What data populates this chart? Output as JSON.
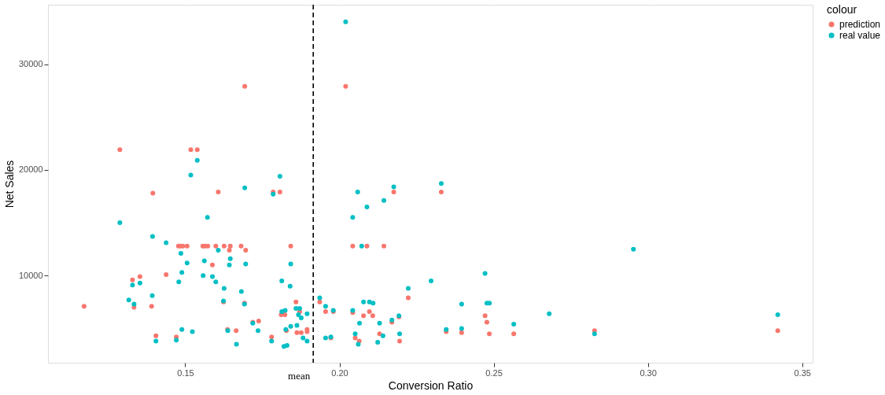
{
  "chart_data": {
    "type": "scatter",
    "xlabel": "Conversion Ratio",
    "ylabel": "Net Sales",
    "legend_title": "colour",
    "xlim": [
      0.1055,
      0.3534
    ],
    "ylim": [
      1760,
      35620
    ],
    "xticks": [
      0.15,
      {
        "value": 0.2,
        "label": "0.20"
      },
      0.25,
      {
        "value": 0.3,
        "label": "0.30"
      },
      0.35
    ],
    "yticks": [
      10000,
      20000,
      30000
    ],
    "grid": true,
    "legend": "right",
    "marker": "circle",
    "ref_lines": [
      {
        "axis": "x",
        "value": 0.1915,
        "label": "mean",
        "color": "#000000",
        "line_style": "dashed"
      }
    ],
    "series": [
      {
        "name": "prediction",
        "color": "#f8766d",
        "x": [
          0.1288,
          0.1518,
          0.1539,
          0.1395,
          0.1607,
          0.1785,
          0.1807,
          0.1478,
          0.1485,
          0.1492,
          0.1506,
          0.1557,
          0.1564,
          0.1573,
          0.1599,
          0.1626,
          0.1646,
          0.1681,
          0.1842,
          0.1643,
          0.1696,
          0.1588,
          0.1329,
          0.1353,
          0.1438,
          0.1172,
          0.1334,
          0.1391,
          0.1624,
          0.1692,
          0.1859,
          0.1871,
          0.1811,
          0.1823,
          0.1738,
          0.1719,
          0.1637,
          0.1665,
          0.1405,
          0.1471,
          0.178,
          0.1828,
          0.1862,
          0.1876,
          0.1895,
          0.1895,
          0.1936,
          0.1955,
          0.198,
          0.1972,
          0.2043,
          0.2089,
          0.2144,
          0.2176,
          0.233,
          0.2043,
          0.2078,
          0.2097,
          0.2108,
          0.2051,
          0.2064,
          0.213,
          0.217,
          0.2193,
          0.2195,
          0.2223,
          0.2346,
          0.2396,
          0.2472,
          0.2478,
          0.2486,
          0.2565,
          0.2827,
          0.3421,
          0.202,
          0.1693
        ],
        "values": [
          21900,
          21900,
          21900,
          17800,
          17900,
          17900,
          17900,
          12800,
          12800,
          12800,
          12800,
          12800,
          12800,
          12800,
          12800,
          12800,
          12800,
          12800,
          12800,
          12400,
          12400,
          11000,
          9600,
          9900,
          10100,
          7100,
          7000,
          7100,
          7500,
          7400,
          7500,
          6600,
          6300,
          6300,
          5700,
          5600,
          4900,
          4800,
          4300,
          4200,
          4200,
          4800,
          4600,
          4600,
          4900,
          4700,
          7500,
          6600,
          6600,
          4100,
          12800,
          12800,
          12800,
          17900,
          17900,
          6500,
          6200,
          6600,
          6200,
          4100,
          3800,
          4500,
          5600,
          6100,
          3800,
          7900,
          4700,
          4600,
          6200,
          5600,
          4500,
          4500,
          4800,
          4800,
          27900,
          27900
        ]
      },
      {
        "name": "real value",
        "color": "#00bfc4",
        "x": [
          0.1539,
          0.1518,
          0.1807,
          0.1693,
          0.1785,
          0.1572,
          0.1288,
          0.1394,
          0.1438,
          0.1486,
          0.1607,
          0.1646,
          0.1506,
          0.1562,
          0.1643,
          0.1696,
          0.1842,
          0.1489,
          0.1558,
          0.1588,
          0.1599,
          0.1479,
          0.1813,
          0.184,
          0.1329,
          0.1353,
          0.1626,
          0.1393,
          0.1682,
          0.1317,
          0.1334,
          0.1624,
          0.1692,
          0.1813,
          0.1824,
          0.1859,
          0.1871,
          0.1867,
          0.1876,
          0.1895,
          0.1719,
          0.1862,
          0.1842,
          0.1489,
          0.1523,
          0.1638,
          0.1736,
          0.1826,
          0.1882,
          0.1405,
          0.1471,
          0.1666,
          0.178,
          0.182,
          0.183,
          0.1895,
          0.1936,
          0.1955,
          0.198,
          0.1955,
          0.1972,
          0.2043,
          0.2059,
          0.2089,
          0.2144,
          0.2176,
          0.233,
          0.2072,
          0.2043,
          0.2078,
          0.2097,
          0.2109,
          0.2065,
          0.2051,
          0.2061,
          0.213,
          0.2141,
          0.2124,
          0.217,
          0.2193,
          0.2195,
          0.2223,
          0.2297,
          0.2346,
          0.2396,
          0.2396,
          0.2472,
          0.2478,
          0.2486,
          0.2565,
          0.268,
          0.2827,
          0.2953,
          0.3421,
          0.202
        ],
        "values": [
          20900,
          19500,
          19400,
          18300,
          17700,
          15500,
          15000,
          13700,
          13100,
          12100,
          12400,
          11600,
          11200,
          11400,
          11000,
          11100,
          11100,
          10300,
          10000,
          9900,
          9400,
          9400,
          9500,
          9000,
          9100,
          9300,
          8800,
          8100,
          8500,
          7700,
          7300,
          7600,
          7300,
          6600,
          6700,
          6900,
          6900,
          6300,
          6000,
          6400,
          5500,
          5300,
          5200,
          4900,
          4700,
          4800,
          4800,
          4900,
          4100,
          3800,
          3900,
          3500,
          3800,
          3300,
          3400,
          3800,
          7900,
          7100,
          6700,
          4100,
          4200,
          15500,
          17900,
          16500,
          17100,
          18400,
          18700,
          12800,
          6700,
          7500,
          7500,
          7400,
          5500,
          4500,
          3500,
          5500,
          4300,
          3700,
          5800,
          6200,
          4500,
          8800,
          9500,
          4900,
          7300,
          5000,
          10200,
          7400,
          7400,
          5400,
          6400,
          4500,
          12500,
          6300,
          34000
        ]
      }
    ]
  }
}
